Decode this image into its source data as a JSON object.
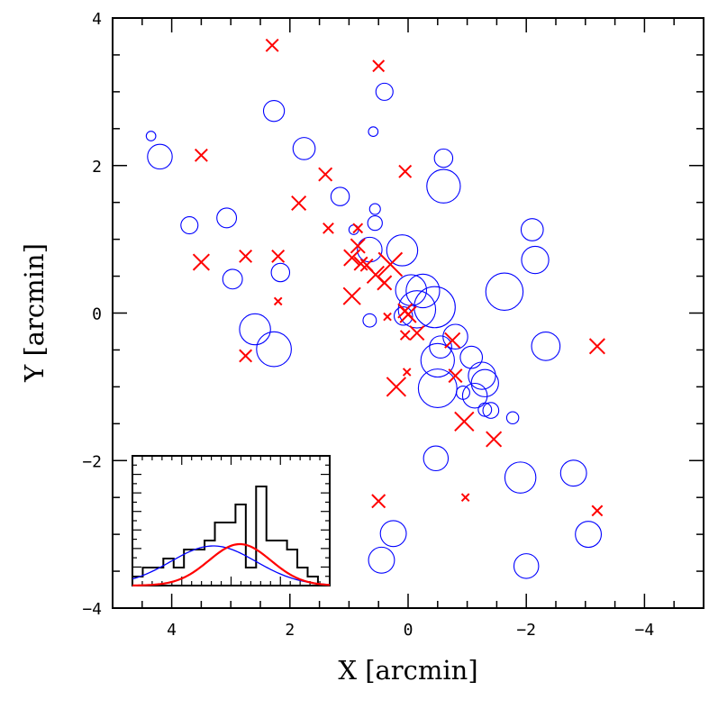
{
  "chart_data": {
    "type": "scatter",
    "xlabel": "X [arcmin]",
    "ylabel": "Y [arcmin]",
    "xlim": [
      5,
      -5
    ],
    "ylim": [
      -4,
      4
    ],
    "x_ticks": [
      "4",
      "2",
      "0",
      "−2",
      "−4"
    ],
    "x_tick_values": [
      4,
      2,
      0,
      -2,
      -4
    ],
    "y_ticks": [
      "−4",
      "−2",
      "0",
      "2",
      "4"
    ],
    "y_tick_values": [
      -4,
      -2,
      0,
      2,
      4
    ],
    "colors": {
      "blue_series": "#0000ff",
      "red_series": "#ff0000",
      "frame": "#000000"
    },
    "series": [
      {
        "name": "blue circles",
        "marker": "circle",
        "color": "#0000ff",
        "points": [
          {
            "x": 4.35,
            "y": 2.4,
            "size": 0.3
          },
          {
            "x": 4.2,
            "y": 2.12,
            "size": 1.5
          },
          {
            "x": 3.7,
            "y": 1.19,
            "size": 0.9
          },
          {
            "x": 3.07,
            "y": 1.29,
            "size": 1.1
          },
          {
            "x": 2.97,
            "y": 0.46,
            "size": 1.1
          },
          {
            "x": 2.27,
            "y": 2.74,
            "size": 1.2
          },
          {
            "x": 2.59,
            "y": -0.22,
            "size": 2.0
          },
          {
            "x": 2.27,
            "y": -0.49,
            "size": 2.3
          },
          {
            "x": 2.16,
            "y": 0.55,
            "size": 1.0
          },
          {
            "x": 1.76,
            "y": 2.23,
            "size": 1.3
          },
          {
            "x": 1.15,
            "y": 1.58,
            "size": 1.0
          },
          {
            "x": 0.92,
            "y": 1.13,
            "size": 0.3
          },
          {
            "x": 0.65,
            "y": -0.1,
            "size": 0.6
          },
          {
            "x": 0.65,
            "y": 0.86,
            "size": 1.5
          },
          {
            "x": 0.59,
            "y": 2.46,
            "size": 0.3
          },
          {
            "x": 0.56,
            "y": 1.41,
            "size": 0.4
          },
          {
            "x": 0.56,
            "y": 1.22,
            "size": 0.7
          },
          {
            "x": 0.4,
            "y": 3.0,
            "size": 0.9
          },
          {
            "x": 0.1,
            "y": 0.85,
            "size": 2.0
          },
          {
            "x": 0.08,
            "y": -0.04,
            "size": 1.0
          },
          {
            "x": -0.05,
            "y": 0.31,
            "size": 2.0
          },
          {
            "x": -0.15,
            "y": 0.05,
            "size": 2.5
          },
          {
            "x": -0.25,
            "y": 0.3,
            "size": 2.2
          },
          {
            "x": -0.45,
            "y": 0.08,
            "size": 2.8
          },
          {
            "x": -0.47,
            "y": -1.97,
            "size": 1.5
          },
          {
            "x": -0.5,
            "y": -0.64,
            "size": 2.2
          },
          {
            "x": -0.5,
            "y": -1.02,
            "size": 2.6
          },
          {
            "x": -0.55,
            "y": -0.46,
            "size": 1.3
          },
          {
            "x": -0.6,
            "y": 1.72,
            "size": 2.2
          },
          {
            "x": -0.6,
            "y": 2.1,
            "size": 1.0
          },
          {
            "x": -0.8,
            "y": -0.32,
            "size": 1.5
          },
          {
            "x": -0.93,
            "y": -1.08,
            "size": 0.6
          },
          {
            "x": -1.07,
            "y": -0.6,
            "size": 1.3
          },
          {
            "x": -1.13,
            "y": -1.12,
            "size": 1.5
          },
          {
            "x": -1.25,
            "y": -0.85,
            "size": 1.7
          },
          {
            "x": -1.3,
            "y": -0.95,
            "size": 1.7
          },
          {
            "x": -1.3,
            "y": -1.31,
            "size": 0.6
          },
          {
            "x": -1.4,
            "y": -1.32,
            "size": 0.8
          },
          {
            "x": -1.63,
            "y": 0.29,
            "size": 2.5
          },
          {
            "x": -1.77,
            "y": -1.42,
            "size": 0.5
          },
          {
            "x": -1.9,
            "y": -2.23,
            "size": 2.0
          },
          {
            "x": -2.0,
            "y": -3.43,
            "size": 1.5
          },
          {
            "x": -2.1,
            "y": 1.13,
            "size": 1.3
          },
          {
            "x": -2.15,
            "y": 0.72,
            "size": 1.7
          },
          {
            "x": -2.33,
            "y": -0.45,
            "size": 1.8
          },
          {
            "x": -2.8,
            "y": -2.17,
            "size": 1.6
          },
          {
            "x": -3.05,
            "y": -3.0,
            "size": 1.6
          },
          {
            "x": 0.25,
            "y": -2.99,
            "size": 1.6
          },
          {
            "x": 0.45,
            "y": -3.35,
            "size": 1.6
          }
        ]
      },
      {
        "name": "red crosses",
        "marker": "cross",
        "color": "#ff0000",
        "points": [
          {
            "x": 2.3,
            "y": 3.63,
            "size": 0.8
          },
          {
            "x": 0.5,
            "y": 3.35,
            "size": 0.7
          },
          {
            "x": 3.5,
            "y": 2.14,
            "size": 0.8
          },
          {
            "x": 0.05,
            "y": 1.92,
            "size": 0.8
          },
          {
            "x": 1.4,
            "y": 1.88,
            "size": 0.9
          },
          {
            "x": 1.85,
            "y": 1.49,
            "size": 1.0
          },
          {
            "x": 1.35,
            "y": 1.15,
            "size": 0.6
          },
          {
            "x": 0.85,
            "y": 1.15,
            "size": 0.5
          },
          {
            "x": 2.75,
            "y": 0.77,
            "size": 0.8
          },
          {
            "x": 2.2,
            "y": 0.77,
            "size": 0.8
          },
          {
            "x": 3.5,
            "y": 0.69,
            "size": 1.2
          },
          {
            "x": 0.85,
            "y": 0.91,
            "size": 1.0
          },
          {
            "x": 0.95,
            "y": 0.75,
            "size": 1.2
          },
          {
            "x": 0.8,
            "y": 0.67,
            "size": 0.9
          },
          {
            "x": 0.7,
            "y": 0.65,
            "size": 0.8
          },
          {
            "x": 0.3,
            "y": 0.66,
            "size": 2.0
          },
          {
            "x": 0.55,
            "y": 0.52,
            "size": 1.3
          },
          {
            "x": 0.4,
            "y": 0.41,
            "size": 1.0
          },
          {
            "x": 0.95,
            "y": 0.23,
            "size": 1.3
          },
          {
            "x": 2.2,
            "y": 0.16,
            "size": 0.3
          },
          {
            "x": 0.35,
            "y": -0.05,
            "size": 0.3
          },
          {
            "x": 0.05,
            "y": 0.03,
            "size": 1.0
          },
          {
            "x": 0.0,
            "y": -0.02,
            "size": 1.2
          },
          {
            "x": 0.05,
            "y": -0.3,
            "size": 0.5
          },
          {
            "x": -0.15,
            "y": -0.27,
            "size": 1.0
          },
          {
            "x": -0.75,
            "y": -0.37,
            "size": 1.1
          },
          {
            "x": -0.8,
            "y": -0.85,
            "size": 0.9
          },
          {
            "x": 2.75,
            "y": -0.58,
            "size": 0.8
          },
          {
            "x": 0.02,
            "y": -0.8,
            "size": 0.3
          },
          {
            "x": 0.2,
            "y": -1.0,
            "size": 1.5
          },
          {
            "x": -0.95,
            "y": -1.47,
            "size": 1.5
          },
          {
            "x": -1.45,
            "y": -1.71,
            "size": 1.1
          },
          {
            "x": 0.5,
            "y": -2.55,
            "size": 0.9
          },
          {
            "x": -0.97,
            "y": -2.5,
            "size": 0.3
          },
          {
            "x": -3.2,
            "y": -0.45,
            "size": 1.1
          },
          {
            "x": -3.2,
            "y": -2.68,
            "size": 0.6
          }
        ]
      }
    ],
    "inset": {
      "type": "histogram",
      "bins": [
        {
          "x0": 0.0,
          "x1": 0.7,
          "h": 0.5
        },
        {
          "x0": 0.7,
          "x1": 1.4,
          "h": 1.0
        },
        {
          "x0": 1.4,
          "x1": 2.1,
          "h": 1.0
        },
        {
          "x0": 2.1,
          "x1": 2.8,
          "h": 1.5
        },
        {
          "x0": 2.8,
          "x1": 3.5,
          "h": 1.0
        },
        {
          "x0": 3.5,
          "x1": 4.2,
          "h": 2.0
        },
        {
          "x0": 4.2,
          "x1": 4.9,
          "h": 2.0
        },
        {
          "x0": 4.9,
          "x1": 5.6,
          "h": 2.5
        },
        {
          "x0": 5.6,
          "x1": 6.3,
          "h": 3.5
        },
        {
          "x0": 6.3,
          "x1": 7.0,
          "h": 3.5
        },
        {
          "x0": 7.0,
          "x1": 7.7,
          "h": 4.5
        },
        {
          "x0": 7.7,
          "x1": 8.4,
          "h": 1.0
        },
        {
          "x0": 8.4,
          "x1": 9.1,
          "h": 5.5
        },
        {
          "x0": 9.1,
          "x1": 9.8,
          "h": 2.5
        },
        {
          "x0": 9.8,
          "x1": 10.5,
          "h": 2.5
        },
        {
          "x0": 10.5,
          "x1": 11.2,
          "h": 2.0
        },
        {
          "x0": 11.2,
          "x1": 11.9,
          "h": 1.0
        },
        {
          "x0": 11.9,
          "x1": 12.6,
          "h": 0.5
        },
        {
          "x0": 12.6,
          "x1": 13.4,
          "h": 0.0
        }
      ],
      "xlim": [
        0,
        13.4
      ],
      "ylim": [
        0,
        7.2
      ],
      "gaussians": [
        {
          "name": "blue",
          "color": "#0000ff",
          "mu": 5.5,
          "sigma": 2.9,
          "amp": 2.2
        },
        {
          "name": "red",
          "color": "#ff0000",
          "mu": 7.3,
          "sigma": 2.1,
          "amp": 2.3
        }
      ]
    }
  }
}
